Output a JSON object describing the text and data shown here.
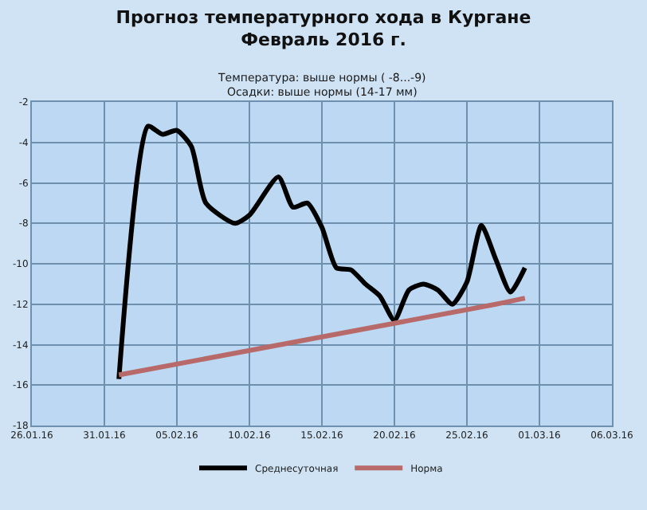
{
  "chart_data": {
    "type": "line",
    "title": "Прогноз температурного хода в Кургане\nФевраль 2016 г.",
    "subtitle": "Температура: выше нормы ( -8...-9)\nОсадки: выше нормы (14-17 мм)",
    "series": [
      {
        "name": "Среднесуточная",
        "color": "#000000",
        "x": [
          "2016-02-01",
          "2016-02-03",
          "2016-02-04",
          "2016-02-05",
          "2016-02-06",
          "2016-02-07",
          "2016-02-09",
          "2016-02-10",
          "2016-02-12",
          "2016-02-13",
          "2016-02-14",
          "2016-02-15",
          "2016-02-16",
          "2016-02-17",
          "2016-02-18",
          "2016-02-19",
          "2016-02-20",
          "2016-02-21",
          "2016-02-22",
          "2016-02-23",
          "2016-02-24",
          "2016-02-25",
          "2016-02-26",
          "2016-02-27",
          "2016-02-28",
          "2016-02-29"
        ],
        "values": [
          -15.7,
          -3.2,
          -3.6,
          -3.4,
          -4.2,
          -7.0,
          -8.0,
          -7.6,
          -5.7,
          -7.2,
          -7.0,
          -8.2,
          -10.2,
          -10.3,
          -11.0,
          -11.6,
          -12.8,
          -11.3,
          -11.0,
          -11.3,
          -12.0,
          -10.9,
          -8.1,
          -9.8,
          -11.4,
          -10.2
        ]
      },
      {
        "name": "Норма",
        "color": "#b86a6a",
        "x": [
          "2016-02-01",
          "2016-02-27",
          "2016-02-29"
        ],
        "values": [
          -15.5,
          -12.0,
          -11.7
        ]
      }
    ],
    "xlim": [
      "2016-01-26",
      "2016-03-06"
    ],
    "xticks": [
      {
        "value": "2016-01-26",
        "label": "26.01.16"
      },
      {
        "value": "2016-01-31",
        "label": "31.01.16"
      },
      {
        "value": "2016-02-05",
        "label": "05.02.16"
      },
      {
        "value": "2016-02-10",
        "label": "10.02.16"
      },
      {
        "value": "2016-02-15",
        "label": "15.02.16"
      },
      {
        "value": "2016-02-20",
        "label": "20.02.16"
      },
      {
        "value": "2016-02-25",
        "label": "25.02.16"
      },
      {
        "value": "2016-03-01",
        "label": "01.03.16"
      },
      {
        "value": "2016-03-06",
        "label": "06.03.16"
      }
    ],
    "ylim": [
      -18,
      -2
    ],
    "yticks": [
      -18,
      -16,
      -14,
      -12,
      -10,
      -8,
      -6,
      -4,
      -2
    ],
    "grid": true,
    "legend": "bottom",
    "line_style": "solid",
    "marker": "none"
  }
}
